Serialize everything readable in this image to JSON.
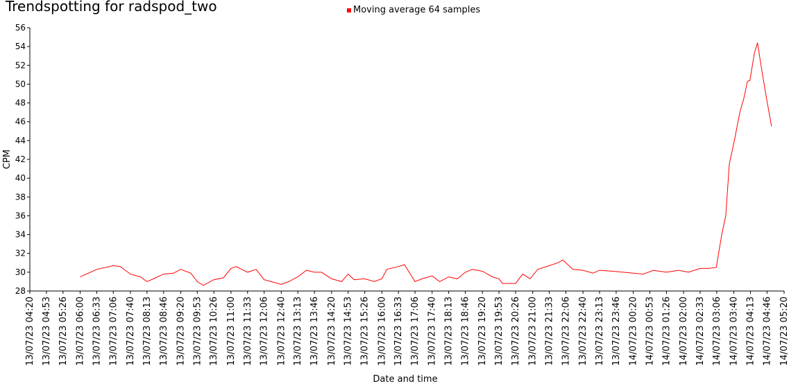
{
  "chart_data": {
    "type": "line",
    "title": "Trendspotting for radspod_two",
    "x_label": "Date and time",
    "y_label": "CPM",
    "legend": "top",
    "x": [
      "13/07/23 06:00",
      "13/07/23 06:33",
      "13/07/23 07:06",
      "13/07/23 07:20",
      "13/07/23 07:40",
      "13/07/23 08:00",
      "13/07/23 08:13",
      "13/07/23 08:30",
      "13/07/23 08:46",
      "13/07/23 09:06",
      "13/07/23 09:20",
      "13/07/23 09:40",
      "13/07/23 09:53",
      "13/07/23 10:05",
      "13/07/23 10:26",
      "13/07/23 10:45",
      "13/07/23 11:00",
      "13/07/23 11:10",
      "13/07/23 11:33",
      "13/07/23 11:50",
      "13/07/23 12:06",
      "13/07/23 12:20",
      "13/07/23 12:40",
      "13/07/23 12:55",
      "13/07/23 13:13",
      "13/07/23 13:30",
      "13/07/23 13:46",
      "13/07/23 14:00",
      "13/07/23 14:20",
      "13/07/23 14:40",
      "13/07/23 14:53",
      "13/07/23 15:05",
      "13/07/23 15:26",
      "13/07/23 15:45",
      "13/07/23 16:00",
      "13/07/23 16:10",
      "13/07/23 16:33",
      "13/07/23 16:45",
      "13/07/23 17:06",
      "13/07/23 17:20",
      "13/07/23 17:40",
      "13/07/23 17:55",
      "13/07/23 18:13",
      "13/07/23 18:30",
      "13/07/23 18:46",
      "13/07/23 19:00",
      "13/07/23 19:20",
      "13/07/23 19:40",
      "13/07/23 19:53",
      "13/07/23 20:00",
      "13/07/23 20:26",
      "13/07/23 20:40",
      "13/07/23 20:55",
      "13/07/23 21:10",
      "13/07/23 21:33",
      "13/07/23 21:50",
      "13/07/23 22:00",
      "13/07/23 22:20",
      "13/07/23 22:40",
      "13/07/23 23:00",
      "13/07/23 23:13",
      "13/07/23 23:40",
      "14/07/23 00:00",
      "14/07/23 00:20",
      "14/07/23 00:40",
      "14/07/23 01:00",
      "14/07/23 01:26",
      "14/07/23 01:50",
      "14/07/23 02:10",
      "14/07/23 02:33",
      "14/07/23 02:50",
      "14/07/23 03:05",
      "14/07/23 03:16",
      "14/07/23 03:24",
      "14/07/23 03:31",
      "14/07/23 03:41",
      "14/07/23 03:52",
      "14/07/23 04:00",
      "14/07/23 04:07",
      "14/07/23 04:12",
      "14/07/23 04:21",
      "14/07/23 04:27",
      "14/07/23 04:34",
      "14/07/23 04:45",
      "14/07/23 04:55"
    ],
    "series": [
      {
        "name": "Moving average 64 samples",
        "color": "#ff0000",
        "values": [
          29.5,
          30.3,
          30.7,
          30.6,
          29.8,
          29.5,
          29.0,
          29.4,
          29.8,
          29.9,
          30.3,
          29.9,
          29.0,
          28.6,
          29.2,
          29.4,
          30.4,
          30.6,
          30.0,
          30.3,
          29.2,
          29.0,
          28.7,
          29.0,
          29.5,
          30.2,
          30.0,
          30.0,
          29.3,
          29.0,
          29.8,
          29.2,
          29.3,
          29.0,
          29.3,
          30.3,
          30.6,
          30.8,
          29.0,
          29.3,
          29.6,
          29.0,
          29.5,
          29.3,
          30.0,
          30.3,
          30.1,
          29.5,
          29.3,
          28.8,
          28.8,
          29.8,
          29.3,
          30.3,
          30.7,
          31.0,
          31.3,
          30.3,
          30.2,
          29.9,
          30.2,
          30.1,
          30.0,
          29.9,
          29.8,
          30.2,
          30.0,
          30.2,
          30.0,
          30.4,
          30.4,
          30.5,
          34.0,
          36.0,
          41.5,
          44.0,
          47.0,
          48.5,
          50.3,
          50.4,
          53.3,
          54.4,
          52.0,
          48.5,
          45.5
        ]
      }
    ],
    "xlim": [
      "13/07/23 04:20",
      "14/07/23 05:20"
    ],
    "xticks": [
      "13/07/23 04:20",
      "13/07/23 04:53",
      "13/07/23 05:26",
      "13/07/23 06:00",
      "13/07/23 06:33",
      "13/07/23 07:06",
      "13/07/23 07:40",
      "13/07/23 08:13",
      "13/07/23 08:46",
      "13/07/23 09:20",
      "13/07/23 09:53",
      "13/07/23 10:26",
      "13/07/23 11:00",
      "13/07/23 11:33",
      "13/07/23 12:06",
      "13/07/23 12:40",
      "13/07/23 13:13",
      "13/07/23 13:46",
      "13/07/23 14:20",
      "13/07/23 14:53",
      "13/07/23 15:26",
      "13/07/23 16:00",
      "13/07/23 16:33",
      "13/07/23 17:06",
      "13/07/23 17:40",
      "13/07/23 18:13",
      "13/07/23 18:46",
      "13/07/23 19:20",
      "13/07/23 19:53",
      "13/07/23 20:26",
      "13/07/23 21:00",
      "13/07/23 21:33",
      "13/07/23 22:06",
      "13/07/23 22:40",
      "13/07/23 23:13",
      "13/07/23 23:46",
      "14/07/23 00:20",
      "14/07/23 00:53",
      "14/07/23 01:26",
      "14/07/23 02:00",
      "14/07/23 02:33",
      "14/07/23 03:06",
      "14/07/23 03:40",
      "14/07/23 04:13",
      "14/07/23 04:46",
      "14/07/23 05:20"
    ],
    "ylim": [
      28,
      56
    ],
    "yticks": [
      28,
      30,
      32,
      34,
      36,
      38,
      40,
      42,
      44,
      46,
      48,
      50,
      52,
      54,
      56
    ],
    "grid": false
  }
}
